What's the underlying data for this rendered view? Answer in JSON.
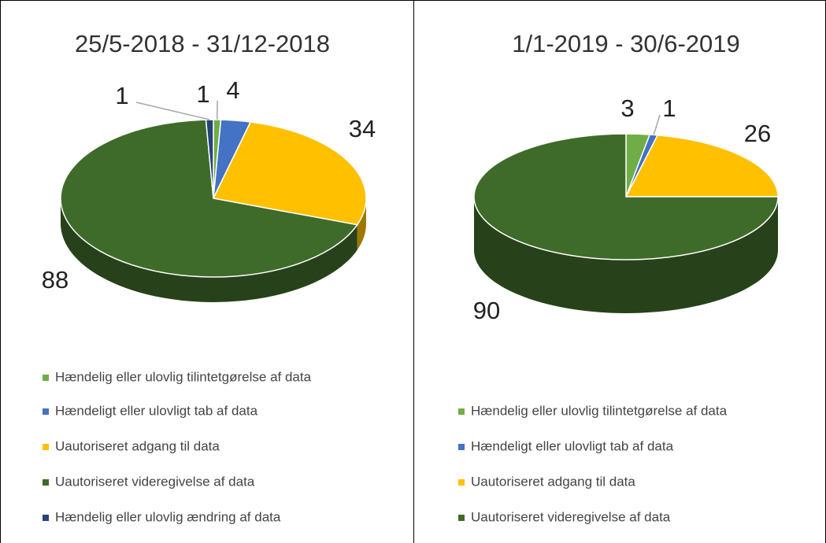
{
  "chart_data": [
    {
      "type": "pie",
      "title": "25/5-2018 - 31/12-2018",
      "categories": [
        "Hændelig eller ulovlig tilintetgørelse af data",
        "Hændeligt eller ulovligt tab af data",
        "Uautoriseret adgang til data",
        "Uautoriseret videregivelse af data",
        "Hændelig eller ulovlig ændring af data"
      ],
      "values": [
        1,
        4,
        34,
        88,
        1
      ],
      "colors": [
        "#70ad47",
        "#4472c4",
        "#ffc000",
        "#3f6b2a",
        "#264478"
      ]
    },
    {
      "type": "pie",
      "title": "1/1-2019 - 30/6-2019",
      "categories": [
        "Hændelig eller ulovlig tilintetgørelse af data",
        "Hændeligt eller ulovligt tab af data",
        "Uautoriseret adgang til data",
        "Uautoriseret videregivelse af data"
      ],
      "values": [
        3,
        1,
        26,
        90
      ],
      "colors": [
        "#70ad47",
        "#4472c4",
        "#ffc000",
        "#3f6b2a"
      ]
    }
  ]
}
